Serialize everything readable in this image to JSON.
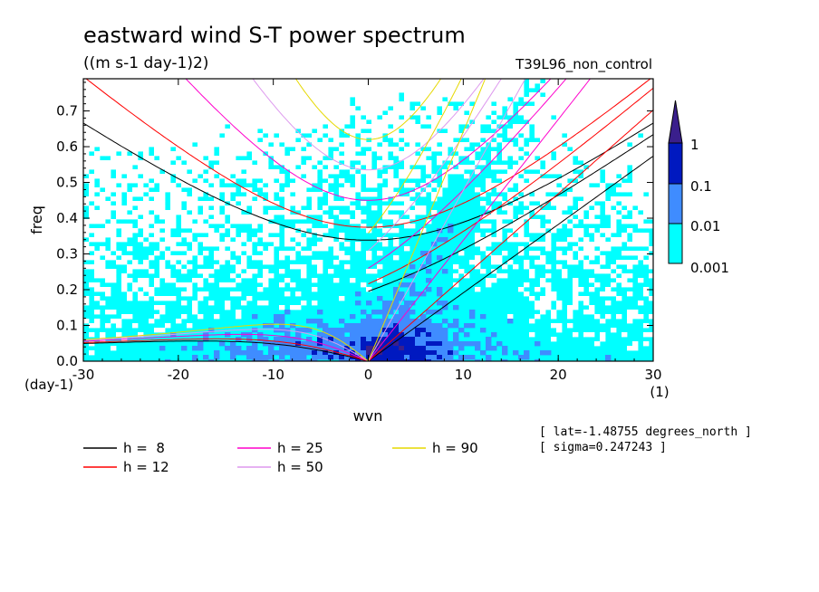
{
  "title": "eastward wind S-T power spectrum",
  "units": "((m s-1 day-1)2)",
  "run_label": "T39L96_non_control",
  "info": [
    "[ lat=-1.48755 degrees_north ]",
    "[ sigma=0.247243 ]"
  ],
  "colors": {
    "level_1": "#ffffff",
    "level_2": "#00ffff",
    "level_3": "#3f8cff",
    "level_4": "#0019c0",
    "level_5": "#3a1f8c"
  },
  "chart_data": {
    "type": "heatmap",
    "xlabel": "wvn",
    "ylabel": "freq",
    "x_unit": "(1)",
    "y_unit": "(day-1)",
    "xlim": [
      -30,
      30
    ],
    "ylim": [
      0,
      0.79
    ],
    "xticks": [
      "-30",
      "-20",
      "-10",
      "0",
      "10",
      "20",
      "30"
    ],
    "yticks": [
      "0.0",
      "0.1",
      "0.2",
      "0.3",
      "0.4",
      "0.5",
      "0.6",
      "0.7"
    ],
    "colorbar": {
      "labels": [
        "1",
        "0.1",
        "0.01",
        "0.001"
      ],
      "levels": [
        0.001,
        0.01,
        0.1,
        1
      ]
    },
    "dispersion_curves": [
      {
        "name": "h =  8",
        "h": 8,
        "color": "#000000"
      },
      {
        "name": "h = 12",
        "h": 12,
        "color": "#ff0000"
      },
      {
        "name": "h = 25",
        "h": 25,
        "color": "#ff00cc"
      },
      {
        "name": "h = 50",
        "h": 50,
        "color": "#dd99ee"
      },
      {
        "name": "h = 90",
        "h": 90,
        "color": "#e6d800"
      }
    ]
  }
}
